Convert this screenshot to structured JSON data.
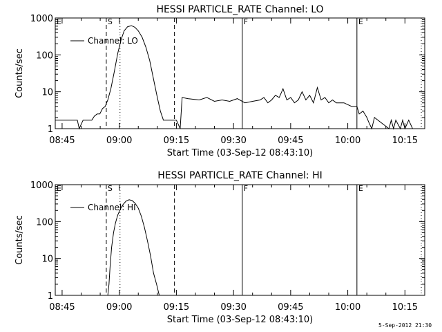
{
  "chart_data": [
    {
      "type": "line",
      "title": "HESSI PARTICLE_RATE Channel: LO",
      "xlabel": "Start Time (03-Sep-12 08:43:10)",
      "ylabel": "Counts/sec",
      "y_scale": "log",
      "ylim": [
        1,
        1000
      ],
      "xlim_minutes": [
        -1.8,
        95.2
      ],
      "x_ticks": [
        "08:45",
        "09:00",
        "09:15",
        "09:30",
        "09:45",
        "10:00",
        "10:15"
      ],
      "y_ticks": [
        "1",
        "10",
        "100",
        "1000"
      ],
      "legend": "Channel: LO",
      "legend_position": "top-left",
      "markers": [
        {
          "label": "E",
          "minute": -1.8,
          "style": "solid"
        },
        {
          "label": "S",
          "minute": 11.6,
          "style": "dashed"
        },
        {
          "label": "",
          "minute": 15.2,
          "style": "dotted"
        },
        {
          "label": "",
          "minute": 29.5,
          "style": "dashed"
        },
        {
          "label": "F",
          "minute": 47.3,
          "style": "solid"
        },
        {
          "label": "E",
          "minute": 77.4,
          "style": "solid"
        },
        {
          "label": "",
          "minute": 94.3,
          "style": "dotted"
        }
      ],
      "series": [
        {
          "x": [
            -1.8,
            4,
            4.5,
            5.5,
            7.8,
            8.5,
            9.2,
            9.9,
            10.6,
            11.3,
            12.0,
            12.8,
            13.7,
            14.6,
            15.5,
            16.3,
            17.2,
            18.2,
            19.1,
            20.0,
            21.0,
            22.0,
            23.0,
            24.0,
            25.0,
            25.8,
            26.6,
            27.3,
            28.0,
            29.0,
            30.0,
            31.0,
            31.5,
            33.0,
            36.0,
            38.0,
            40.0,
            42.0,
            44.0,
            46.0,
            48.0,
            50.0,
            52.0,
            53.0,
            54.0,
            55.0,
            56.0,
            57.0,
            58.0,
            59.0,
            60.0,
            61.0,
            62.0,
            63.0,
            64.0,
            65.0,
            66.0,
            67.0,
            68.0,
            69.0,
            70.0,
            71.0,
            72.0,
            74.0,
            76.0,
            77.4,
            78.0,
            79.0,
            80.0,
            80.5,
            81.3,
            82.0,
            85.8,
            86.4,
            87.0,
            87.6,
            88.8,
            89.4,
            90.0,
            91.0,
            92.0
          ],
          "y": [
            1.7,
            1.7,
            1,
            1.7,
            1.7,
            2.2,
            2.5,
            2.5,
            3.5,
            4,
            6,
            12,
            35,
            110,
            260,
            450,
            580,
            620,
            560,
            450,
            300,
            160,
            70,
            22,
            7,
            3,
            1.7,
            1.7,
            1.7,
            1.7,
            1.7,
            1,
            7,
            6.5,
            6,
            7,
            5.5,
            6,
            5.5,
            6.5,
            5,
            5.5,
            6,
            7,
            5,
            6,
            8,
            7,
            12,
            6,
            7,
            5,
            6,
            10,
            6,
            8,
            5,
            13,
            6,
            7,
            5,
            6,
            5,
            5,
            4,
            4,
            2.5,
            3,
            2,
            1.5,
            1,
            2,
            1,
            1.7,
            1,
            1.7,
            1,
            1.7,
            1,
            1.7,
            1
          ]
        }
      ]
    },
    {
      "type": "line",
      "title": "HESSI PARTICLE_RATE Channel: HI",
      "xlabel": "Start Time (03-Sep-12 08:43:10)",
      "ylabel": "Counts/sec",
      "y_scale": "log",
      "ylim": [
        1,
        1000
      ],
      "xlim_minutes": [
        -1.8,
        95.2
      ],
      "x_ticks": [
        "08:45",
        "09:00",
        "09:15",
        "09:30",
        "09:45",
        "10:00",
        "10:15"
      ],
      "y_ticks": [
        "1",
        "10",
        "100",
        "1000"
      ],
      "legend": "Channel: HI",
      "legend_position": "top-left",
      "markers": [
        {
          "label": "E",
          "minute": -1.8,
          "style": "solid"
        },
        {
          "label": "S",
          "minute": 11.6,
          "style": "dashed"
        },
        {
          "label": "",
          "minute": 15.2,
          "style": "dotted"
        },
        {
          "label": "",
          "minute": 29.5,
          "style": "dashed"
        },
        {
          "label": "F",
          "minute": 47.3,
          "style": "solid"
        },
        {
          "label": "E",
          "minute": 77.4,
          "style": "solid"
        },
        {
          "label": "",
          "minute": 94.3,
          "style": "dotted"
        }
      ],
      "series": [
        {
          "x": [
            12.0,
            12.3,
            12.6,
            13.0,
            13.5,
            14.0,
            14.6,
            15.3,
            16.0,
            16.8,
            17.6,
            18.4,
            19.2,
            20.0,
            20.8,
            21.6,
            22.4,
            23.2,
            24.0,
            24.8,
            25.5
          ],
          "y": [
            1,
            2,
            6,
            20,
            50,
            90,
            150,
            220,
            290,
            360,
            390,
            370,
            310,
            230,
            140,
            70,
            30,
            12,
            4,
            2,
            1
          ]
        }
      ]
    }
  ],
  "footer": {
    "timestamp": "5-Sep-2012 21:30"
  }
}
